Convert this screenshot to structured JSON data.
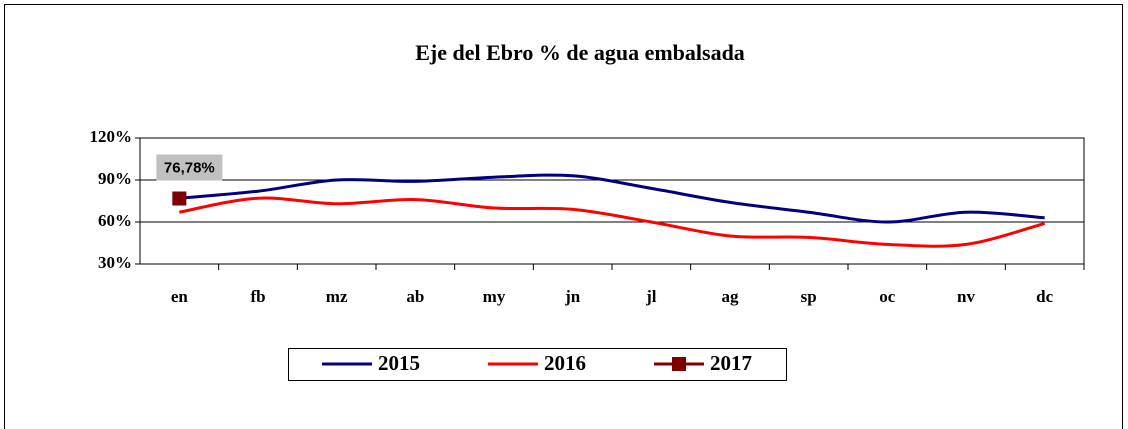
{
  "chart_data": {
    "type": "line",
    "title": "Eje del Ebro % de agua embalsada",
    "categories": [
      "en",
      "fb",
      "mz",
      "ab",
      "my",
      "jn",
      "jl",
      "ag",
      "sp",
      "oc",
      "nv",
      "dc"
    ],
    "series": [
      {
        "name": "2015",
        "color": "#000080",
        "values": [
          77,
          82,
          90,
          89,
          92,
          93,
          84,
          74,
          67,
          60,
          67,
          63
        ]
      },
      {
        "name": "2016",
        "color": "#ff0000",
        "values": [
          67,
          77,
          73,
          76,
          70,
          69,
          60,
          50,
          49,
          44,
          44,
          59
        ]
      },
      {
        "name": "2017",
        "color": "#800000",
        "values": [
          76.78,
          null,
          null,
          null,
          null,
          null,
          null,
          null,
          null,
          null,
          null,
          null
        ],
        "value_labels": [
          "76,78%",
          null,
          null,
          null,
          null,
          null,
          null,
          null,
          null,
          null,
          null,
          null
        ]
      }
    ],
    "ylim": [
      30,
      120
    ],
    "yticks": [
      {
        "value": 30,
        "label": "30%"
      },
      {
        "value": 60,
        "label": "60%"
      },
      {
        "value": 90,
        "label": "90%"
      },
      {
        "value": 120,
        "label": "120%"
      }
    ],
    "grid": true,
    "legend": "bottom"
  }
}
